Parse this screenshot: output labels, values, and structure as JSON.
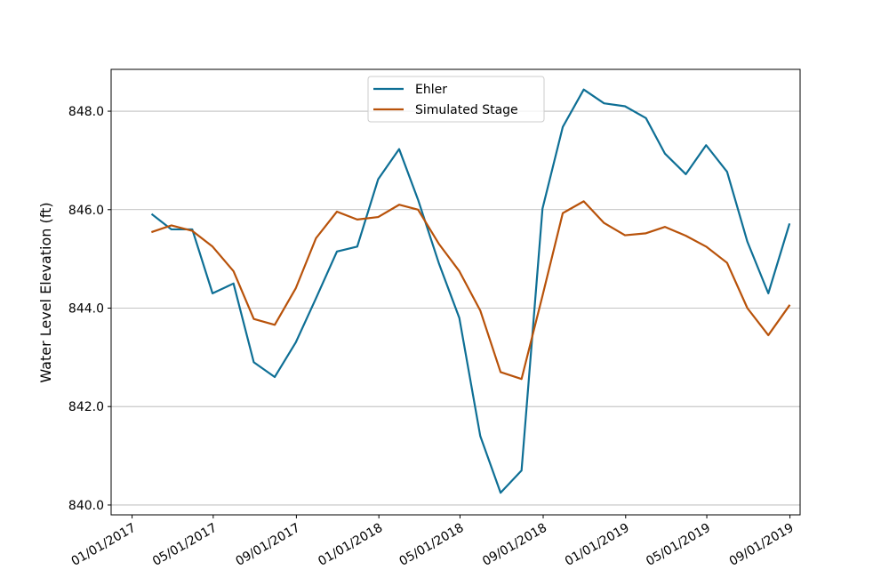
{
  "chart_data": {
    "type": "line",
    "title": "",
    "xlabel": "",
    "ylabel": "Water Level Elevation (ft)",
    "x_ticks": [
      "2017-01-01",
      "2017-05-01",
      "2017-09-01",
      "2018-01-01",
      "2018-05-01",
      "2018-09-01",
      "2019-01-01",
      "2019-05-01",
      "2019-09-01"
    ],
    "x_tick_labels": [
      "01/01/2017",
      "05/01/2017",
      "09/01/2017",
      "01/01/2018",
      "05/01/2018",
      "09/01/2018",
      "01/01/2019",
      "05/01/2019",
      "09/01/2019"
    ],
    "xlim": [
      "2016-12-01",
      "2019-09-16"
    ],
    "ylim": [
      839.8,
      848.85
    ],
    "y_ticks": [
      840.0,
      842.0,
      844.0,
      846.0,
      848.0
    ],
    "y_tick_labels": [
      "840.0",
      "842.0",
      "844.0",
      "846.0",
      "848.0"
    ],
    "grid": "horizontal",
    "legend_position": "top-center",
    "x": [
      "2017-01-31",
      "2017-02-28",
      "2017-03-31",
      "2017-04-30",
      "2017-05-31",
      "2017-06-30",
      "2017-07-31",
      "2017-08-31",
      "2017-09-30",
      "2017-10-31",
      "2017-11-30",
      "2017-12-31",
      "2018-01-31",
      "2018-02-28",
      "2018-03-31",
      "2018-04-30",
      "2018-05-31",
      "2018-06-30",
      "2018-07-31",
      "2018-08-31",
      "2018-09-30",
      "2018-10-31",
      "2018-11-30",
      "2018-12-31",
      "2019-01-31",
      "2019-02-28",
      "2019-03-31",
      "2019-04-30",
      "2019-05-31",
      "2019-06-30",
      "2019-07-31",
      "2019-08-31"
    ],
    "series": [
      {
        "name": "Ehler",
        "color": "#0e6f95",
        "values": [
          845.9,
          845.6,
          845.6,
          844.3,
          844.5,
          842.9,
          842.6,
          843.3,
          844.2,
          845.15,
          845.25,
          846.62,
          847.23,
          846.2,
          844.9,
          843.8,
          841.4,
          840.25,
          840.7,
          846.02,
          847.68,
          848.44,
          848.16,
          848.1,
          847.86,
          847.14,
          846.72,
          847.31,
          846.77,
          845.35,
          844.3,
          845.7
        ]
      },
      {
        "name": "Simulated Stage",
        "color": "#b8520a",
        "values": [
          845.55,
          845.68,
          845.57,
          845.25,
          844.75,
          843.78,
          843.66,
          844.4,
          845.42,
          845.96,
          845.8,
          845.85,
          846.1,
          846.0,
          845.3,
          844.75,
          843.95,
          842.7,
          842.56,
          844.25,
          845.93,
          846.17,
          845.73,
          845.48,
          845.52,
          845.65,
          845.47,
          845.25,
          844.92,
          844.0,
          843.45,
          844.05
        ]
      }
    ]
  }
}
